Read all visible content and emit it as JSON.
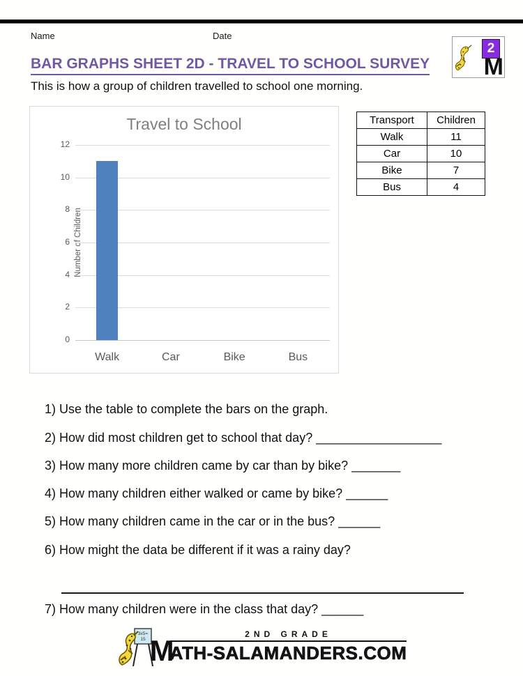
{
  "page": {
    "name_label": "Name",
    "date_label": "Date"
  },
  "header": {
    "title": "BAR GRAPHS SHEET 2D - TRAVEL TO SCHOOL SURVEY",
    "subtitle": "This is how a group of children travelled to school one morning.",
    "logo": {
      "grade_number": "2",
      "letter": "M"
    }
  },
  "chart_data": {
    "type": "bar",
    "title": "Travel to School",
    "ylabel": "Number of Children",
    "xlabel": "",
    "categories": [
      "Walk",
      "Car",
      "Bike",
      "Bus"
    ],
    "values": [
      11,
      null,
      null,
      null
    ],
    "ylim": [
      0,
      12
    ],
    "yticks": [
      0,
      2,
      4,
      6,
      8,
      10,
      12
    ],
    "grid": true,
    "bar_color": "#4e81bd"
  },
  "table": {
    "headers": [
      "Transport",
      "Children"
    ],
    "rows": [
      [
        "Walk",
        "11"
      ],
      [
        "Car",
        "10"
      ],
      [
        "Bike",
        "7"
      ],
      [
        "Bus",
        "4"
      ]
    ]
  },
  "questions": [
    "1) Use the table to complete the bars on the graph.",
    "2) How did most children get to school that day? __________________",
    "3) How many more children came by car than by bike? _______",
    "4) How many children either walked or came by bike? ______",
    "5) How many children came in the car or in the bus? ______",
    "6) How might the data be different if it was a rainy day?",
    "7) How many children were in the class that day? ______"
  ],
  "footer": {
    "grade": "2ND GRADE",
    "brand_m": "M",
    "brand_rest": "ATH-SALAMANDERS.COM",
    "sign_line1": "3x5=",
    "sign_line2": "15"
  },
  "colors": {
    "title_purple": "#7158a2",
    "bar_blue": "#4e81bd",
    "chart_gray_text": "#595959",
    "gridline": "#dcdcdc",
    "badge_purple": "#8a2be2"
  }
}
